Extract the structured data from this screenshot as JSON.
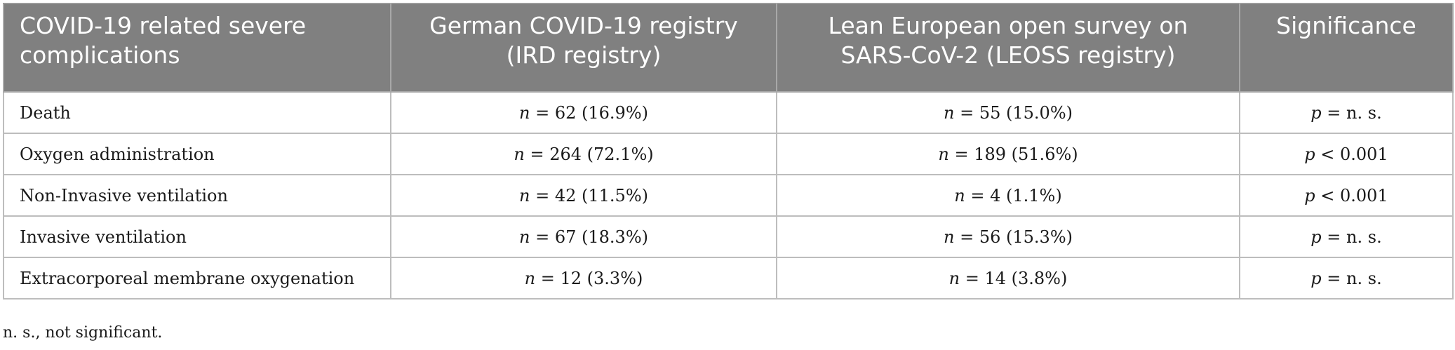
{
  "table": {
    "headers": [
      "COVID-19 related severe complications",
      "German COVID-19 registry (IRD registry)",
      "Lean European open survey on SARS-CoV-2 (LEOSS registry)",
      "Significance"
    ],
    "rows": [
      {
        "label": "Death",
        "ird": {
          "var": "n",
          "value": "62 (16.9%)"
        },
        "leoss": {
          "var": "n",
          "value": "55 (15.0%)"
        },
        "sig": {
          "var": "p",
          "op": "=",
          "value": "n. s."
        }
      },
      {
        "label": "Oxygen administration",
        "ird": {
          "var": "n",
          "value": "264 (72.1%)"
        },
        "leoss": {
          "var": "n",
          "value": "189 (51.6%)"
        },
        "sig": {
          "var": "p",
          "op": "<",
          "value": "0.001"
        }
      },
      {
        "label": "Non-Invasive ventilation",
        "ird": {
          "var": "n",
          "value": "42 (11.5%)"
        },
        "leoss": {
          "var": "n",
          "value": "4 (1.1%)"
        },
        "sig": {
          "var": "p",
          "op": "<",
          "value": "0.001"
        }
      },
      {
        "label": "Invasive ventilation",
        "ird": {
          "var": "n",
          "value": "67 (18.3%)"
        },
        "leoss": {
          "var": "n",
          "value": "56 (15.3%)"
        },
        "sig": {
          "var": "p",
          "op": "=",
          "value": "n. s."
        }
      },
      {
        "label": "Extracorporeal membrane oxygenation",
        "ird": {
          "var": "n",
          "value": "12 (3.3%)"
        },
        "leoss": {
          "var": "n",
          "value": "14 (3.8%)"
        },
        "sig": {
          "var": "p",
          "op": "=",
          "value": "n. s."
        }
      }
    ]
  },
  "footnote": "n. s., not significant.",
  "colors": {
    "header_bg": "#808080",
    "header_text": "#ffffff",
    "border": "#bdbdbd"
  }
}
